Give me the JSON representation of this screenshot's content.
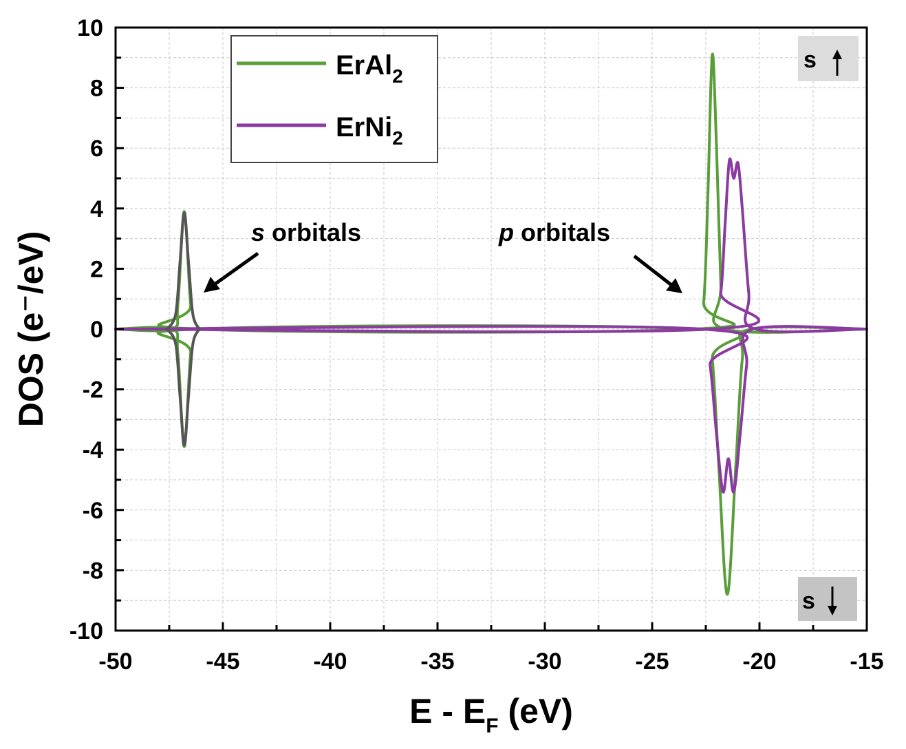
{
  "chart_data": {
    "type": "line",
    "xlabel": "E - E",
    "xlabel_sub": "F",
    "xlabel_unit": " (eV)",
    "ylabel": "DOS (e⁻/eV)",
    "xlim": [
      -50,
      -15
    ],
    "ylim": [
      -10,
      10
    ],
    "x_ticks": [
      -50,
      -45,
      -40,
      -35,
      -30,
      -25,
      -20,
      -15
    ],
    "x_tick_labels": [
      "-50",
      "-45",
      "-40",
      "-35",
      "-30",
      "-25",
      "-20",
      "-15"
    ],
    "y_ticks": [
      -10,
      -8,
      -6,
      -4,
      -2,
      0,
      2,
      4,
      6,
      8,
      10
    ],
    "y_tick_labels": [
      "-10",
      "-8",
      "-6",
      "-4",
      "-2",
      "0",
      "2",
      "4",
      "6",
      "8",
      "10"
    ],
    "grid": true,
    "legend_position": "top-left",
    "legend": [
      {
        "name": "ErAl",
        "sub": "2",
        "color": "#5a9e3a"
      },
      {
        "name": "ErNi",
        "sub": "2",
        "color": "#8a3aa0"
      }
    ],
    "series": [
      {
        "name": "ErAl2",
        "color": "#5a9e3a",
        "spin": "up",
        "points": [
          [
            -50,
            0
          ],
          [
            -47.4,
            0
          ],
          [
            -47.1,
            0.8
          ],
          [
            -46.8,
            3.9
          ],
          [
            -46.5,
            0.8
          ],
          [
            -46.2,
            0
          ],
          [
            -23.0,
            0
          ],
          [
            -22.6,
            0.9
          ],
          [
            -22.4,
            4.5
          ],
          [
            -22.2,
            9.1
          ],
          [
            -22.0,
            6.0
          ],
          [
            -21.8,
            1.5
          ],
          [
            -21.6,
            0
          ],
          [
            -15,
            0
          ]
        ]
      },
      {
        "name": "ErAl2",
        "color": "#5a9e3a",
        "spin": "down",
        "points": [
          [
            -50,
            0
          ],
          [
            -47.4,
            0
          ],
          [
            -47.1,
            -0.8
          ],
          [
            -46.8,
            -3.9
          ],
          [
            -46.5,
            -0.8
          ],
          [
            -46.2,
            0
          ],
          [
            -22.6,
            0
          ],
          [
            -22.2,
            -1.0
          ],
          [
            -21.9,
            -4.5
          ],
          [
            -21.5,
            -8.8
          ],
          [
            -21.1,
            -4.5
          ],
          [
            -20.8,
            -1.0
          ],
          [
            -20.4,
            0
          ],
          [
            -15,
            0
          ]
        ]
      },
      {
        "name": "ErNi2",
        "color": "#8a3aa0",
        "spin": "up",
        "points": [
          [
            -50,
            0
          ],
          [
            -22.2,
            0
          ],
          [
            -21.8,
            1.2
          ],
          [
            -21.6,
            3.5
          ],
          [
            -21.4,
            5.6
          ],
          [
            -21.2,
            5.0
          ],
          [
            -21.0,
            5.5
          ],
          [
            -20.8,
            4.0
          ],
          [
            -20.5,
            1.2
          ],
          [
            -20.2,
            0
          ],
          [
            -15,
            0
          ]
        ]
      },
      {
        "name": "ErNi2",
        "color": "#8a3aa0",
        "spin": "down",
        "points": [
          [
            -50,
            0
          ],
          [
            -22.7,
            0
          ],
          [
            -22.3,
            -1.2
          ],
          [
            -22.0,
            -3.5
          ],
          [
            -21.7,
            -5.4
          ],
          [
            -21.45,
            -4.3
          ],
          [
            -21.2,
            -5.4
          ],
          [
            -20.9,
            -3.5
          ],
          [
            -20.6,
            -1.2
          ],
          [
            -20.3,
            0
          ],
          [
            -15,
            0
          ]
        ]
      },
      {
        "name": "s-peak-overlay",
        "color": "#555555",
        "spin": "up",
        "points": [
          [
            -47.6,
            0
          ],
          [
            -47.2,
            0.5
          ],
          [
            -47.0,
            2.2
          ],
          [
            -46.8,
            3.85
          ],
          [
            -46.6,
            2.2
          ],
          [
            -46.4,
            0.5
          ],
          [
            -46.1,
            0
          ]
        ]
      },
      {
        "name": "s-peak-overlay",
        "color": "#555555",
        "spin": "down",
        "points": [
          [
            -47.6,
            0
          ],
          [
            -47.2,
            -0.5
          ],
          [
            -47.0,
            -2.2
          ],
          [
            -46.8,
            -3.85
          ],
          [
            -46.6,
            -2.2
          ],
          [
            -46.4,
            -0.5
          ],
          [
            -46.1,
            0
          ]
        ]
      }
    ],
    "annotations": [
      {
        "italic": "s",
        "text": " orbitals",
        "arrow_to": [
          -46.1,
          1.2
        ]
      },
      {
        "italic": "p",
        "text": " orbitals",
        "arrow_to": [
          -23.2,
          1.2
        ]
      }
    ],
    "badges": [
      {
        "text": "s",
        "arrow": "up",
        "position": "top-right"
      },
      {
        "text": "s",
        "arrow": "down",
        "position": "bottom-right"
      }
    ]
  }
}
